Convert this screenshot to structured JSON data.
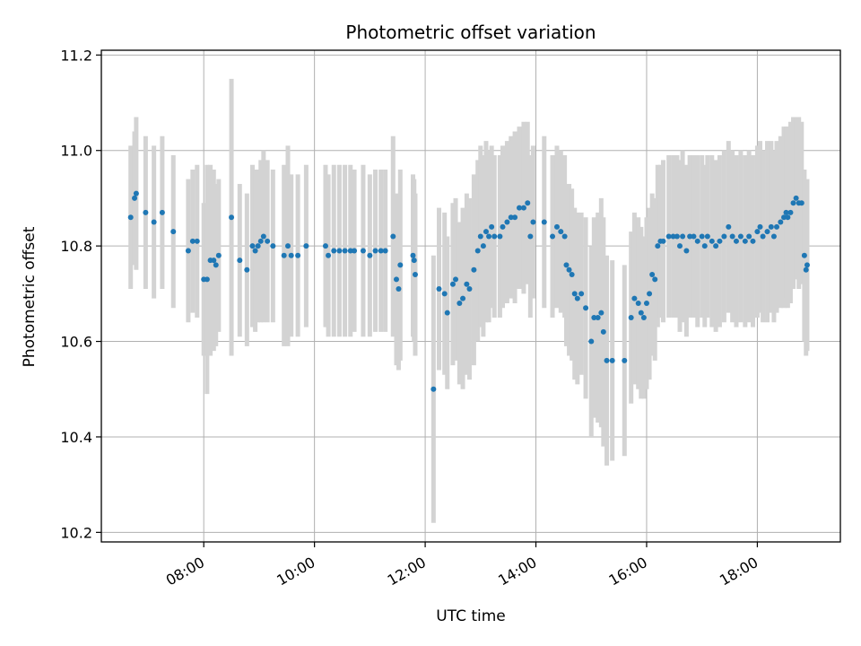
{
  "chart_data": {
    "type": "scatter",
    "title": "Photometric offset variation",
    "xlabel": "UTC time",
    "ylabel": "Photometric offset",
    "x_unit": "hours UTC",
    "xlim": [
      6.15,
      19.5
    ],
    "ylim": [
      10.18,
      11.21
    ],
    "grid": true,
    "x_ticks": [
      {
        "value": 8,
        "label": "08:00"
      },
      {
        "value": 10,
        "label": "10:00"
      },
      {
        "value": 12,
        "label": "12:00"
      },
      {
        "value": 14,
        "label": "14:00"
      },
      {
        "value": 16,
        "label": "16:00"
      },
      {
        "value": 18,
        "label": "18:00"
      }
    ],
    "y_ticks": [
      {
        "value": 10.2,
        "label": "10.2"
      },
      {
        "value": 10.4,
        "label": "10.4"
      },
      {
        "value": 10.6,
        "label": "10.6"
      },
      {
        "value": 10.8,
        "label": "10.8"
      },
      {
        "value": 11.0,
        "label": "11.0"
      },
      {
        "value": 11.2,
        "label": "11.2"
      }
    ],
    "colors": {
      "points": "#1f77b4",
      "errorbars": "#d3d3d3",
      "grid": "#b0b0b0"
    },
    "points": [
      [
        6.68,
        10.86,
        0.15
      ],
      [
        6.75,
        10.9,
        0.14
      ],
      [
        6.78,
        10.91,
        0.16
      ],
      [
        6.95,
        10.87,
        0.16
      ],
      [
        7.1,
        10.85,
        0.16
      ],
      [
        7.25,
        10.87,
        0.16
      ],
      [
        7.45,
        10.83,
        0.16
      ],
      [
        7.72,
        10.79,
        0.15
      ],
      [
        7.8,
        10.81,
        0.15
      ],
      [
        7.88,
        10.81,
        0.16
      ],
      [
        8.0,
        10.73,
        0.16
      ],
      [
        8.06,
        10.73,
        0.24
      ],
      [
        8.12,
        10.77,
        0.2
      ],
      [
        8.18,
        10.77,
        0.19
      ],
      [
        8.22,
        10.76,
        0.17
      ],
      [
        8.27,
        10.78,
        0.16
      ],
      [
        8.5,
        10.86,
        0.29
      ],
      [
        8.65,
        10.77,
        0.16
      ],
      [
        8.78,
        10.75,
        0.16
      ],
      [
        8.88,
        10.8,
        0.17
      ],
      [
        8.93,
        10.79,
        0.17
      ],
      [
        8.98,
        10.8,
        0.16
      ],
      [
        9.03,
        10.81,
        0.17
      ],
      [
        9.08,
        10.82,
        0.18
      ],
      [
        9.15,
        10.81,
        0.17
      ],
      [
        9.25,
        10.8,
        0.16
      ],
      [
        9.45,
        10.78,
        0.19
      ],
      [
        9.52,
        10.8,
        0.21
      ],
      [
        9.58,
        10.78,
        0.17
      ],
      [
        9.7,
        10.78,
        0.17
      ],
      [
        9.85,
        10.8,
        0.17
      ],
      [
        10.2,
        10.8,
        0.17
      ],
      [
        10.25,
        10.78,
        0.17
      ],
      [
        10.35,
        10.79,
        0.18
      ],
      [
        10.45,
        10.79,
        0.18
      ],
      [
        10.55,
        10.79,
        0.18
      ],
      [
        10.65,
        10.79,
        0.18
      ],
      [
        10.72,
        10.79,
        0.17
      ],
      [
        10.88,
        10.79,
        0.18
      ],
      [
        11.0,
        10.78,
        0.17
      ],
      [
        11.1,
        10.79,
        0.17
      ],
      [
        11.2,
        10.79,
        0.17
      ],
      [
        11.28,
        10.79,
        0.17
      ],
      [
        11.42,
        10.82,
        0.21
      ],
      [
        11.48,
        10.73,
        0.18
      ],
      [
        11.52,
        10.71,
        0.17
      ],
      [
        11.55,
        10.76,
        0.2
      ],
      [
        11.78,
        10.78,
        0.17
      ],
      [
        11.8,
        10.77,
        0.17
      ],
      [
        11.82,
        10.74,
        0.17
      ],
      [
        12.15,
        10.5,
        0.28
      ],
      [
        12.25,
        10.71,
        0.17
      ],
      [
        12.35,
        10.7,
        0.17
      ],
      [
        12.4,
        10.66,
        0.16
      ],
      [
        12.5,
        10.72,
        0.17
      ],
      [
        12.55,
        10.73,
        0.17
      ],
      [
        12.62,
        10.68,
        0.17
      ],
      [
        12.68,
        10.69,
        0.19
      ],
      [
        12.75,
        10.72,
        0.19
      ],
      [
        12.8,
        10.71,
        0.19
      ],
      [
        12.88,
        10.75,
        0.2
      ],
      [
        12.95,
        10.79,
        0.19
      ],
      [
        13.0,
        10.82,
        0.19
      ],
      [
        13.05,
        10.8,
        0.19
      ],
      [
        13.1,
        10.83,
        0.19
      ],
      [
        13.15,
        10.82,
        0.18
      ],
      [
        13.2,
        10.84,
        0.17
      ],
      [
        13.25,
        10.82,
        0.17
      ],
      [
        13.35,
        10.82,
        0.17
      ],
      [
        13.4,
        10.84,
        0.17
      ],
      [
        13.48,
        10.85,
        0.17
      ],
      [
        13.55,
        10.86,
        0.17
      ],
      [
        13.62,
        10.86,
        0.18
      ],
      [
        13.7,
        10.88,
        0.17
      ],
      [
        13.78,
        10.88,
        0.18
      ],
      [
        13.85,
        10.89,
        0.17
      ],
      [
        13.9,
        10.82,
        0.17
      ],
      [
        13.95,
        10.85,
        0.16
      ],
      [
        14.15,
        10.85,
        0.18
      ],
      [
        14.3,
        10.82,
        0.17
      ],
      [
        14.38,
        10.84,
        0.17
      ],
      [
        14.45,
        10.83,
        0.17
      ],
      [
        14.52,
        10.82,
        0.17
      ],
      [
        14.55,
        10.76,
        0.17
      ],
      [
        14.6,
        10.75,
        0.18
      ],
      [
        14.65,
        10.74,
        0.18
      ],
      [
        14.7,
        10.7,
        0.18
      ],
      [
        14.75,
        10.69,
        0.18
      ],
      [
        14.82,
        10.7,
        0.17
      ],
      [
        14.9,
        10.67,
        0.19
      ],
      [
        15.0,
        10.6,
        0.2
      ],
      [
        15.05,
        10.65,
        0.21
      ],
      [
        15.12,
        10.65,
        0.22
      ],
      [
        15.18,
        10.66,
        0.24
      ],
      [
        15.22,
        10.62,
        0.24
      ],
      [
        15.28,
        10.56,
        0.22
      ],
      [
        15.38,
        10.56,
        0.21
      ],
      [
        15.6,
        10.56,
        0.2
      ],
      [
        15.72,
        10.65,
        0.18
      ],
      [
        15.78,
        10.69,
        0.18
      ],
      [
        15.85,
        10.68,
        0.18
      ],
      [
        15.9,
        10.66,
        0.18
      ],
      [
        15.95,
        10.65,
        0.17
      ],
      [
        16.0,
        10.68,
        0.18
      ],
      [
        16.05,
        10.7,
        0.18
      ],
      [
        16.1,
        10.74,
        0.17
      ],
      [
        16.15,
        10.73,
        0.17
      ],
      [
        16.2,
        10.8,
        0.17
      ],
      [
        16.25,
        10.81,
        0.16
      ],
      [
        16.3,
        10.81,
        0.17
      ],
      [
        16.4,
        10.82,
        0.17
      ],
      [
        16.48,
        10.82,
        0.17
      ],
      [
        16.55,
        10.82,
        0.17
      ],
      [
        16.6,
        10.8,
        0.18
      ],
      [
        16.65,
        10.82,
        0.18
      ],
      [
        16.72,
        10.79,
        0.18
      ],
      [
        16.78,
        10.82,
        0.17
      ],
      [
        16.85,
        10.82,
        0.17
      ],
      [
        16.92,
        10.81,
        0.18
      ],
      [
        17.0,
        10.82,
        0.17
      ],
      [
        17.05,
        10.8,
        0.17
      ],
      [
        17.1,
        10.82,
        0.17
      ],
      [
        17.18,
        10.81,
        0.18
      ],
      [
        17.25,
        10.8,
        0.18
      ],
      [
        17.32,
        10.81,
        0.18
      ],
      [
        17.4,
        10.82,
        0.18
      ],
      [
        17.48,
        10.84,
        0.18
      ],
      [
        17.55,
        10.82,
        0.18
      ],
      [
        17.62,
        10.81,
        0.18
      ],
      [
        17.7,
        10.82,
        0.18
      ],
      [
        17.78,
        10.81,
        0.18
      ],
      [
        17.85,
        10.82,
        0.18
      ],
      [
        17.92,
        10.81,
        0.18
      ],
      [
        18.0,
        10.83,
        0.18
      ],
      [
        18.05,
        10.84,
        0.18
      ],
      [
        18.1,
        10.82,
        0.18
      ],
      [
        18.18,
        10.83,
        0.19
      ],
      [
        18.25,
        10.84,
        0.18
      ],
      [
        18.3,
        10.82,
        0.18
      ],
      [
        18.35,
        10.84,
        0.18
      ],
      [
        18.42,
        10.85,
        0.18
      ],
      [
        18.48,
        10.86,
        0.19
      ],
      [
        18.52,
        10.87,
        0.18
      ],
      [
        18.55,
        10.86,
        0.19
      ],
      [
        18.6,
        10.87,
        0.19
      ],
      [
        18.65,
        10.89,
        0.18
      ],
      [
        18.7,
        10.9,
        0.17
      ],
      [
        18.75,
        10.89,
        0.18
      ],
      [
        18.8,
        10.89,
        0.17
      ],
      [
        18.85,
        10.78,
        0.18
      ],
      [
        18.88,
        10.75,
        0.18
      ],
      [
        18.9,
        10.76,
        0.18
      ]
    ]
  }
}
